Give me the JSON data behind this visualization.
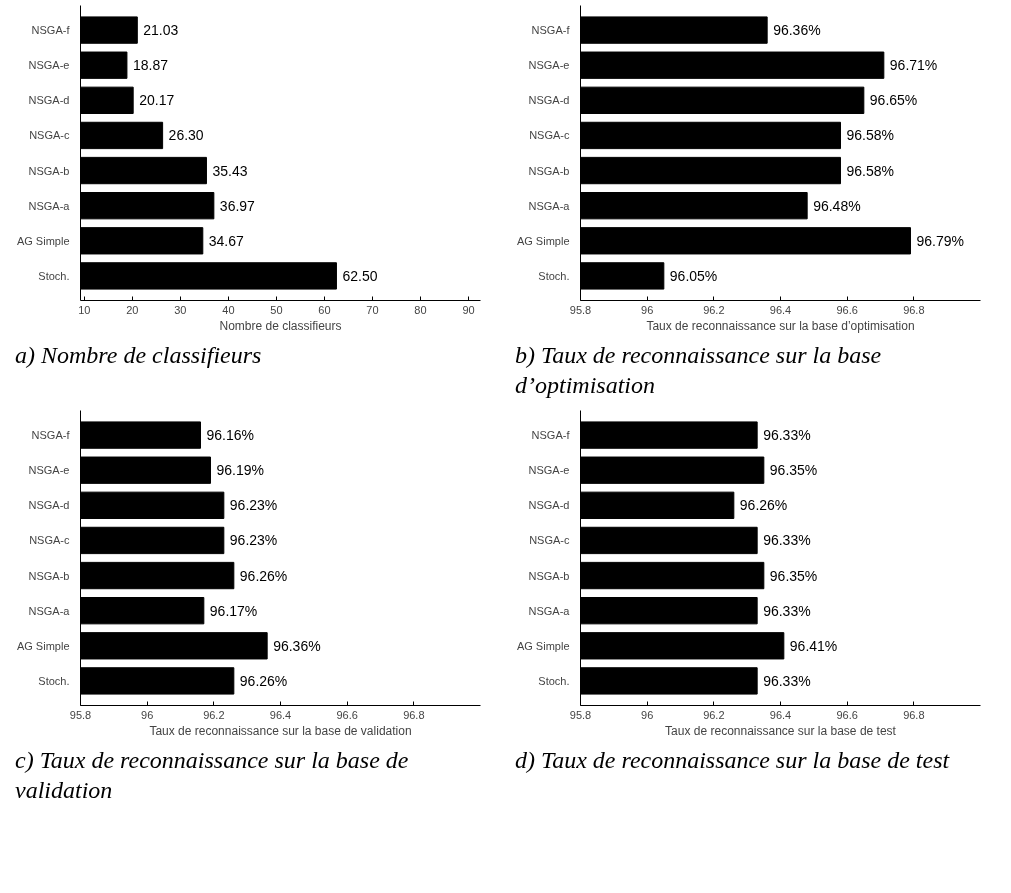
{
  "chart_data": [
    {
      "type": "bar",
      "orientation": "horizontal",
      "xlabel": "Nombre de classifieurs",
      "categories": [
        "NSGA-f",
        "NSGA-e",
        "NSGA-d",
        "NSGA-c",
        "NSGA-b",
        "NSGA-a",
        "AG Simple",
        "Stoch."
      ],
      "values": [
        21.03,
        18.87,
        20.17,
        26.3,
        35.43,
        36.97,
        34.67,
        62.5
      ],
      "color": "#000000",
      "xlim": [
        9.2,
        92.5
      ],
      "xticks": [
        10,
        20,
        30,
        40,
        50,
        60,
        70,
        80,
        90
      ],
      "value_labels": [
        "21.03",
        "18.87",
        "20.17",
        "26.30",
        "35.43",
        "36.97",
        "34.67",
        "62.50"
      ],
      "grid": false,
      "annotations": [
        "a) Nombre de classifieurs"
      ]
    },
    {
      "type": "bar",
      "orientation": "horizontal",
      "xlabel": "Taux de reconnaissance sur la base d’optimisation",
      "categories": [
        "NSGA-f",
        "NSGA-e",
        "NSGA-d",
        "NSGA-c",
        "NSGA-b",
        "NSGA-a",
        "AG Simple",
        "Stoch."
      ],
      "values": [
        96.36,
        96.71,
        96.65,
        96.58,
        96.58,
        96.48,
        96.79,
        96.05
      ],
      "value_labels": [
        "96.36%",
        "96.71%",
        "96.65%",
        "96.58%",
        "96.58%",
        "96.48%",
        "96.79%",
        "96.05%"
      ],
      "color": "#000000",
      "xlim": [
        95.8,
        97.0
      ],
      "xticks": [
        95.8,
        96,
        96.2,
        96.4,
        96.6,
        96.8
      ],
      "grid": false,
      "annotations": [
        "b) Taux de reconnaissance sur la base d’optimisation"
      ]
    },
    {
      "type": "bar",
      "orientation": "horizontal",
      "xlabel": "Taux de reconnaissance sur la base de validation",
      "categories": [
        "NSGA-f",
        "NSGA-e",
        "NSGA-d",
        "NSGA-c",
        "NSGA-b",
        "NSGA-a",
        "AG Simple",
        "Stoch."
      ],
      "values": [
        96.16,
        96.19,
        96.23,
        96.23,
        96.26,
        96.17,
        96.36,
        96.26
      ],
      "value_labels": [
        "96.16%",
        "96.19%",
        "96.23%",
        "96.23%",
        "96.26%",
        "96.17%",
        "96.36%",
        "96.26%"
      ],
      "color": "#000000",
      "xlim": [
        95.8,
        97.0
      ],
      "xticks": [
        95.8,
        96,
        96.2,
        96.4,
        96.6,
        96.8
      ],
      "grid": false,
      "annotations": [
        "c) Taux de reconnaissance sur la base de validation"
      ]
    },
    {
      "type": "bar",
      "orientation": "horizontal",
      "xlabel": "Taux de reconnaissance sur la base de test",
      "categories": [
        "NSGA-f",
        "NSGA-e",
        "NSGA-d",
        "NSGA-c",
        "NSGA-b",
        "NSGA-a",
        "AG Simple",
        "Stoch."
      ],
      "values": [
        96.33,
        96.35,
        96.26,
        96.33,
        96.35,
        96.33,
        96.41,
        96.33
      ],
      "value_labels": [
        "96.33%",
        "96.35%",
        "96.26%",
        "96.33%",
        "96.35%",
        "96.33%",
        "96.41%",
        "96.33%"
      ],
      "color": "#000000",
      "xlim": [
        95.8,
        97.0
      ],
      "xticks": [
        95.8,
        96,
        96.2,
        96.4,
        96.6,
        96.8
      ],
      "grid": false,
      "annotations": [
        "d) Taux de reconnaissance sur la base de test"
      ]
    }
  ]
}
